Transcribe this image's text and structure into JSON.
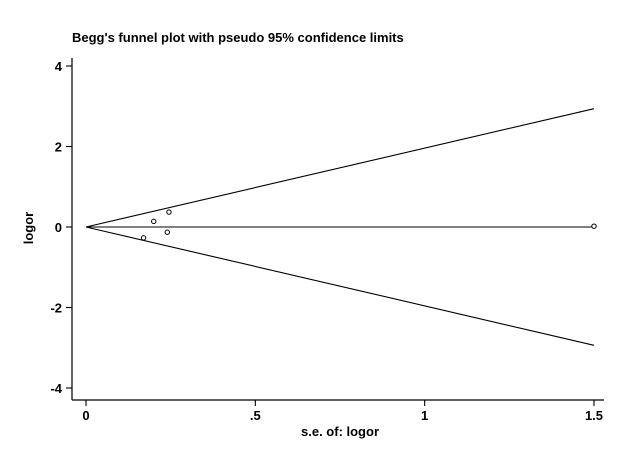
{
  "chart_data": {
    "type": "scatter",
    "title": "Begg's funnel plot with pseudo 95% confidence limits",
    "xlabel": "s.e. of: logor",
    "ylabel": "logor",
    "xlim": [
      0,
      1.5
    ],
    "ylim": [
      -4,
      4
    ],
    "x_ticks": [
      {
        "value": 0,
        "label": "0"
      },
      {
        "value": 0.5,
        "label": ".5"
      },
      {
        "value": 1,
        "label": "1"
      },
      {
        "value": 1.5,
        "label": "1.5"
      }
    ],
    "y_ticks": [
      {
        "value": 4,
        "label": "4"
      },
      {
        "value": 2,
        "label": "2"
      },
      {
        "value": 0,
        "label": "0"
      },
      {
        "value": -2,
        "label": "-2"
      },
      {
        "value": -4,
        "label": "-4"
      }
    ],
    "grid": false,
    "legend": "none",
    "pooled_estimate": 0,
    "funnel_limits": {
      "upper": [
        {
          "x": 0,
          "y": 0
        },
        {
          "x": 1.5,
          "y": 2.94
        }
      ],
      "lower": [
        {
          "x": 0,
          "y": 0
        },
        {
          "x": 1.5,
          "y": -2.94
        }
      ]
    },
    "series": [
      {
        "x": [
          0.17,
          0.2,
          0.24,
          0.245,
          1.5
        ],
        "y": [
          -0.27,
          0.14,
          -0.13,
          0.37,
          0.02
        ]
      }
    ],
    "colors": {
      "line": "#000000",
      "marker": "#000000",
      "background": "#ffffff"
    }
  }
}
